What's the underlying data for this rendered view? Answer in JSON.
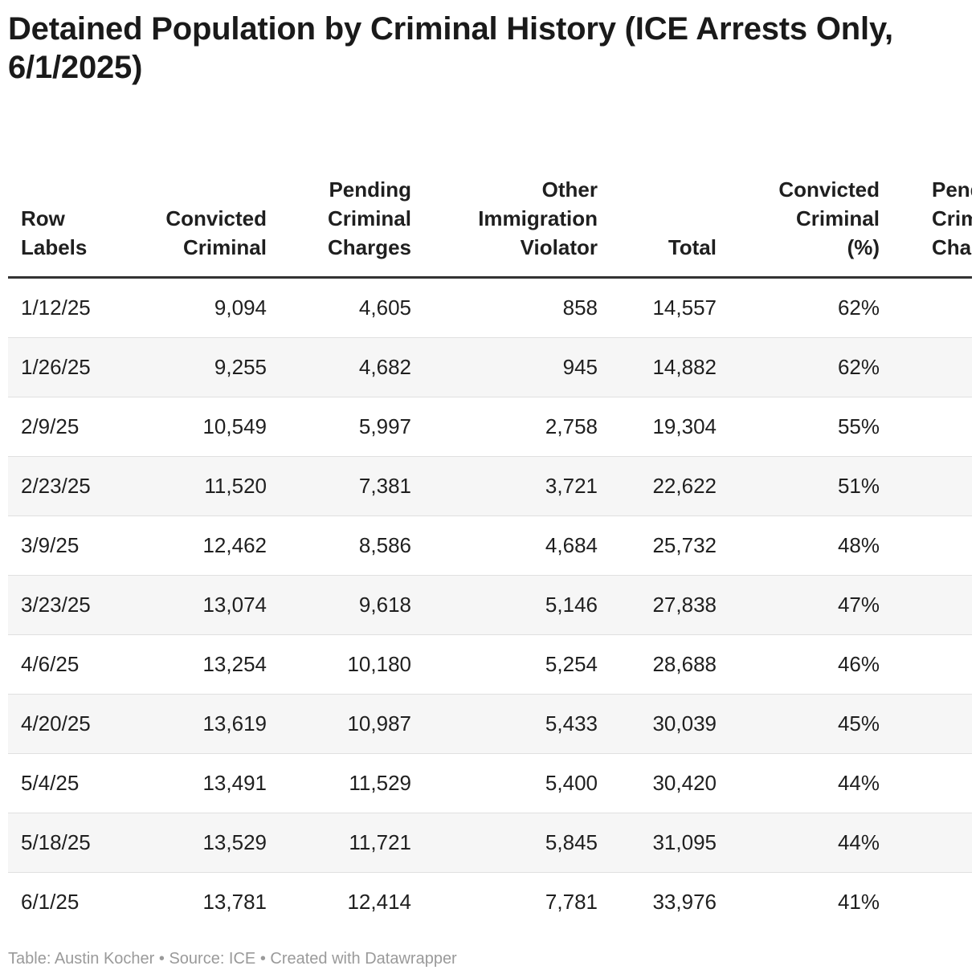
{
  "chart_data": {
    "type": "table",
    "title": "Detained Population by Criminal History (ICE Arrests Only, 6/1/2025)",
    "columns": [
      [
        "Row",
        "Labels"
      ],
      [
        "Convicted",
        "Criminal"
      ],
      [
        "Pending",
        "Criminal",
        "Charges"
      ],
      [
        "Other",
        "Immigration",
        "Violator"
      ],
      [
        "Total"
      ],
      [
        "Convicted",
        "Criminal",
        "(%)"
      ],
      [
        "Pending",
        "Criminal",
        "Charges"
      ]
    ],
    "rows": [
      [
        "1/12/25",
        "9,094",
        "4,605",
        "858",
        "14,557",
        "62%",
        ""
      ],
      [
        "1/26/25",
        "9,255",
        "4,682",
        "945",
        "14,882",
        "62%",
        ""
      ],
      [
        "2/9/25",
        "10,549",
        "5,997",
        "2,758",
        "19,304",
        "55%",
        ""
      ],
      [
        "2/23/25",
        "11,520",
        "7,381",
        "3,721",
        "22,622",
        "51%",
        ""
      ],
      [
        "3/9/25",
        "12,462",
        "8,586",
        "4,684",
        "25,732",
        "48%",
        ""
      ],
      [
        "3/23/25",
        "13,074",
        "9,618",
        "5,146",
        "27,838",
        "47%",
        ""
      ],
      [
        "4/6/25",
        "13,254",
        "10,180",
        "5,254",
        "28,688",
        "46%",
        ""
      ],
      [
        "4/20/25",
        "13,619",
        "10,987",
        "5,433",
        "30,039",
        "45%",
        ""
      ],
      [
        "5/4/25",
        "13,491",
        "11,529",
        "5,400",
        "30,420",
        "44%",
        ""
      ],
      [
        "5/18/25",
        "13,529",
        "11,721",
        "5,845",
        "31,095",
        "44%",
        ""
      ],
      [
        "6/1/25",
        "13,781",
        "12,414",
        "7,781",
        "33,976",
        "41%",
        ""
      ]
    ],
    "footer": "Table: Austin Kocher • Source: ICE • Created with Datawrapper"
  }
}
